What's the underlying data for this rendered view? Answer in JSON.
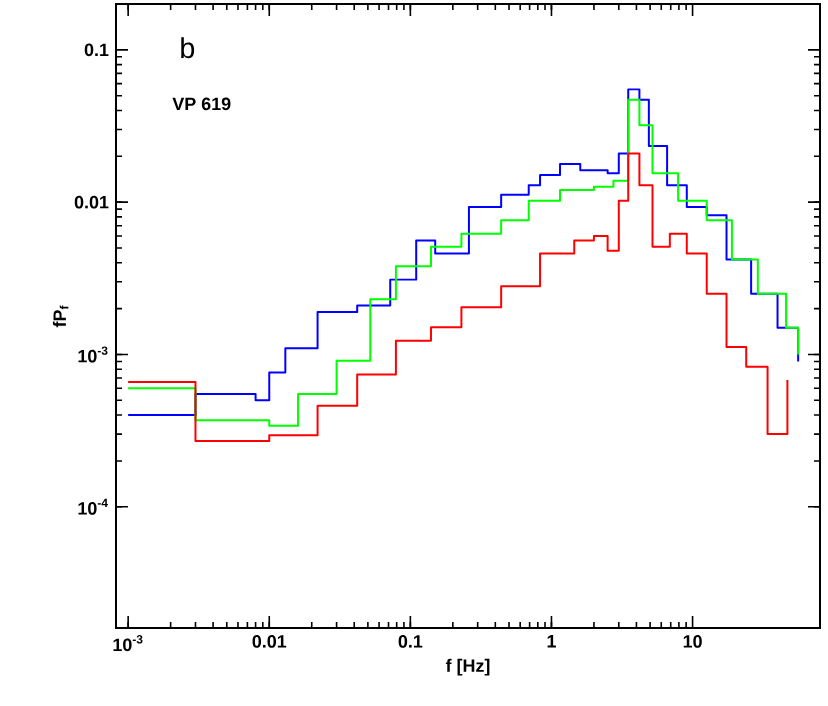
{
  "chart_data": {
    "type": "step",
    "xlabel": "f [Hz]",
    "ylabel": "fP$_{f}$",
    "annotations": [
      "b",
      "VP 619"
    ],
    "log": "xy",
    "xlim": [
      0.00082,
      80
    ],
    "ylim": [
      1.6e-05,
      0.2
    ],
    "xticks": [
      {
        "value": 0.001,
        "label": "10$^{-3}$"
      },
      0.01,
      0.1,
      1,
      10
    ],
    "yticks": [
      {
        "value": 0.0001,
        "label": "10$^{-4}$"
      },
      {
        "value": 0.001,
        "label": "10$^{-3}$"
      },
      0.01,
      0.1
    ],
    "series": [
      {
        "color": "#0000ff",
        "x": [
          0.001,
          0.003,
          0.008,
          0.01,
          0.013,
          0.022,
          0.042,
          0.072,
          0.11,
          0.15,
          0.26,
          0.44,
          0.69,
          0.83,
          1.15,
          1.6,
          2.5,
          3.0,
          3.5,
          4.2,
          4.9,
          6.6,
          9.1,
          12.6,
          17.4,
          26,
          40,
          50,
          56
        ],
        "values": [
          0.0004,
          0.00055,
          0.0005,
          0.00076,
          0.0011,
          0.0019,
          0.0021,
          0.0031,
          0.0056,
          0.0046,
          0.0093,
          0.0112,
          0.0129,
          0.0151,
          0.0178,
          0.0162,
          0.0155,
          0.0209,
          0.055,
          0.047,
          0.0234,
          0.0129,
          0.0093,
          0.0082,
          0.0042,
          0.0025,
          0.0015,
          0.0015,
          0.0009
        ]
      },
      {
        "color": "#00ff00",
        "x": [
          0.001,
          0.003,
          0.01,
          0.016,
          0.03,
          0.052,
          0.079,
          0.14,
          0.23,
          0.44,
          0.69,
          1.15,
          2.0,
          2.75,
          3.5,
          4.2,
          5.2,
          7.9,
          12.6,
          19,
          29,
          46,
          56
        ],
        "values": [
          0.0006,
          0.00037,
          0.00034,
          0.00055,
          0.00091,
          0.0023,
          0.0038,
          0.0051,
          0.0062,
          0.0076,
          0.0102,
          0.012,
          0.0126,
          0.0138,
          0.047,
          0.032,
          0.0155,
          0.0102,
          0.0076,
          0.0042,
          0.0025,
          0.0015,
          0.001
        ]
      },
      {
        "color": "#ff0000",
        "x": [
          0.001,
          0.003,
          0.01,
          0.022,
          0.042,
          0.079,
          0.14,
          0.23,
          0.44,
          0.83,
          1.45,
          2.0,
          2.5,
          3.0,
          3.5,
          4.2,
          5.2,
          6.9,
          9.1,
          12.6,
          17.4,
          24,
          34,
          47
        ],
        "values": [
          0.00066,
          0.00027,
          0.000295,
          0.00046,
          0.00074,
          0.00123,
          0.00151,
          0.00204,
          0.0028,
          0.0046,
          0.0056,
          0.006,
          0.0048,
          0.0102,
          0.0209,
          0.0129,
          0.0051,
          0.0062,
          0.0046,
          0.0025,
          0.00112,
          0.00083,
          0.0003,
          0.00068
        ]
      }
    ]
  }
}
